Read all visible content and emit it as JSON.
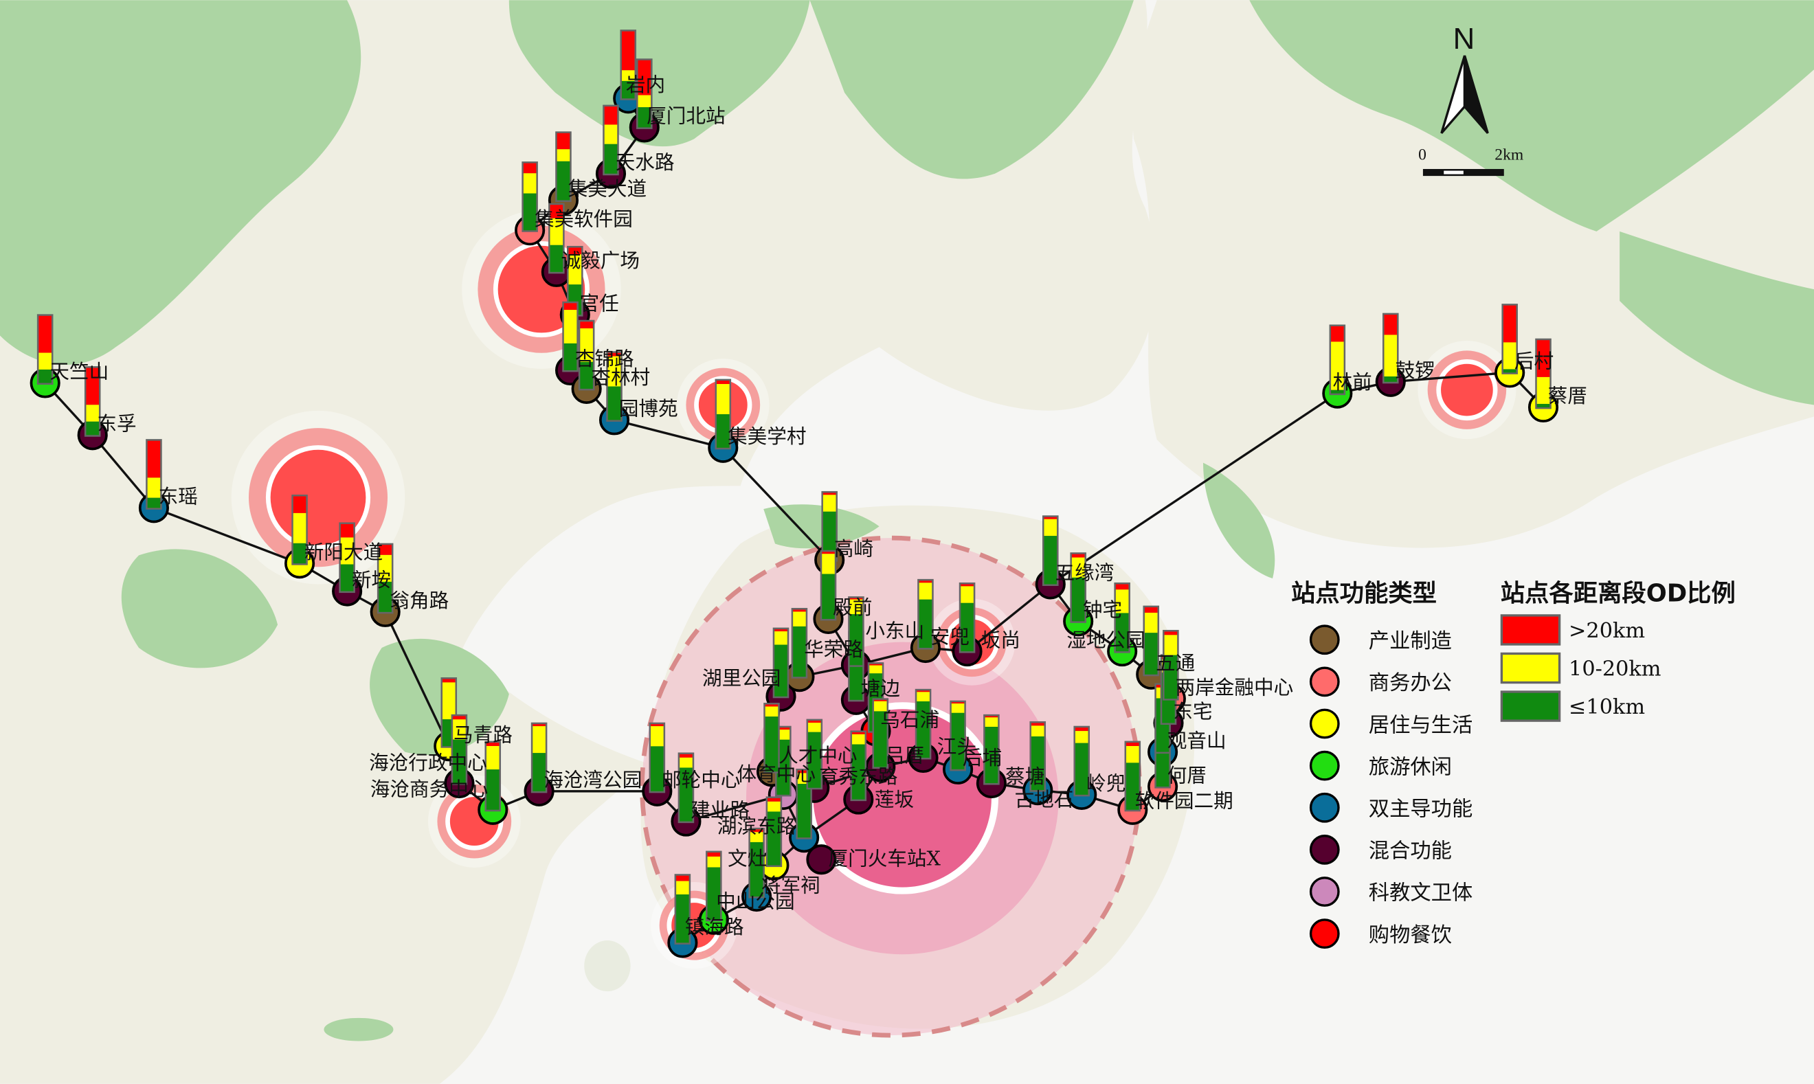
{
  "map": {
    "north_label": "N",
    "scale_labels": [
      "0",
      "2km"
    ],
    "colors": {
      "land": "#efeee2",
      "green": "#acd5a3",
      "water": "#f6f6f4",
      "line": "#111111",
      "hotspot": "#ff4d4d",
      "core": "#e85a8a"
    }
  },
  "legend": {
    "function_title": "站点功能类型",
    "function_types": [
      {
        "key": "industry",
        "label": "产业制造",
        "color": "#7a5a2e"
      },
      {
        "key": "business",
        "label": "商务办公",
        "color": "#ff6b6b"
      },
      {
        "key": "residential",
        "label": "居住与生活",
        "color": "#ffff00"
      },
      {
        "key": "leisure",
        "label": "旅游休闲",
        "color": "#22dd11"
      },
      {
        "key": "dual",
        "label": "双主导功能",
        "color": "#0a6e9a"
      },
      {
        "key": "mixed",
        "label": "混合功能",
        "color": "#55002e"
      },
      {
        "key": "education",
        "label": "科教文卫体",
        "color": "#cc88bb"
      },
      {
        "key": "shopping",
        "label": "购物餐饮",
        "color": "#ff0000"
      }
    ],
    "od_title": "站点各距离段OD比例",
    "od_bands": [
      {
        "key": "far",
        "label": ">20km",
        "color": "#ff0000"
      },
      {
        "key": "mid",
        "label": "10-20km",
        "color": "#ffff00"
      },
      {
        "key": "near",
        "label": "≤10km",
        "color": "#108a10"
      }
    ]
  },
  "stations": [
    {
      "name": "岩内",
      "type": "dual",
      "od": [
        58,
        16,
        26
      ]
    },
    {
      "name": "厦门北站",
      "type": "mixed",
      "od": [
        52,
        18,
        30
      ]
    },
    {
      "name": "天水路",
      "type": "mixed",
      "od": [
        27,
        29,
        44
      ]
    },
    {
      "name": "集美大道",
      "type": "industry",
      "od": [
        24,
        18,
        58
      ]
    },
    {
      "name": "集美软件园",
      "type": "business",
      "od": [
        15,
        30,
        55
      ]
    },
    {
      "name": "诚毅广场",
      "type": "mixed",
      "od": [
        20,
        40,
        40
      ]
    },
    {
      "name": "官任",
      "type": "mixed",
      "od": [
        10,
        45,
        45
      ]
    },
    {
      "name": "杏锦路",
      "type": "mixed",
      "od": [
        10,
        50,
        40
      ]
    },
    {
      "name": "杏林村",
      "type": "industry",
      "od": [
        10,
        50,
        40
      ]
    },
    {
      "name": "园博苑",
      "type": "dual",
      "od": [
        5,
        45,
        50
      ]
    },
    {
      "name": "集美学村",
      "type": "dual",
      "od": [
        5,
        45,
        50
      ]
    },
    {
      "name": "高崎",
      "type": "industry",
      "od": [
        3,
        25,
        72
      ]
    },
    {
      "name": "殿前",
      "type": "industry",
      "od": [
        3,
        30,
        67
      ]
    },
    {
      "name": "塘边",
      "type": "mixed",
      "od": [
        2,
        15,
        83
      ]
    },
    {
      "name": "乌石浦",
      "type": "shopping",
      "od": [
        2,
        12,
        86
      ]
    },
    {
      "name": "吕厝",
      "type": "mixed",
      "od": [
        2,
        15,
        83
      ]
    },
    {
      "name": "莲坂",
      "type": "mixed",
      "od": [
        3,
        15,
        82
      ]
    },
    {
      "name": "湖滨东路",
      "type": "dual",
      "od": [
        4,
        16,
        80
      ]
    },
    {
      "name": "文灶",
      "type": "residential",
      "od": [
        5,
        15,
        80
      ]
    },
    {
      "name": "将军祠",
      "type": "dual",
      "od": [
        4,
        15,
        81
      ]
    },
    {
      "name": "中山公园",
      "type": "leisure",
      "od": [
        6,
        16,
        78
      ]
    },
    {
      "name": "镇海路",
      "type": "dual",
      "od": [
        8,
        20,
        72
      ]
    },
    {
      "name": "天竺山",
      "type": "leisure",
      "od": [
        55,
        25,
        20
      ]
    },
    {
      "name": "东孚",
      "type": "mixed",
      "od": [
        55,
        25,
        20
      ]
    },
    {
      "name": "东瑶",
      "type": "dual",
      "od": [
        55,
        30,
        15
      ]
    },
    {
      "name": "新阳大道",
      "type": "residential",
      "od": [
        25,
        45,
        30
      ]
    },
    {
      "name": "新垵",
      "type": "mixed",
      "od": [
        20,
        40,
        40
      ]
    },
    {
      "name": "翁角路",
      "type": "industry",
      "od": [
        15,
        40,
        45
      ]
    },
    {
      "name": "马青路",
      "type": "residential",
      "od": [
        5,
        55,
        40
      ]
    },
    {
      "name": "海沧行政中心",
      "type": "mixed",
      "od": [
        5,
        30,
        65
      ]
    },
    {
      "name": "海沧商务中心",
      "type": "leisure",
      "od": [
        5,
        35,
        60
      ]
    },
    {
      "name": "海沧湾公园",
      "type": "mixed",
      "od": [
        3,
        40,
        57
      ]
    },
    {
      "name": "邮轮中心",
      "type": "mixed",
      "od": [
        3,
        30,
        67
      ]
    },
    {
      "name": "建业路",
      "type": "mixed",
      "od": [
        5,
        15,
        80
      ]
    },
    {
      "name": "体育中心",
      "type": "education",
      "od": [
        3,
        15,
        82
      ]
    },
    {
      "name": "育秀东路",
      "type": "mixed",
      "od": [
        3,
        14,
        83
      ]
    },
    {
      "name": "江头",
      "type": "mixed",
      "od": [
        2,
        14,
        84
      ]
    },
    {
      "name": "后埔",
      "type": "dual",
      "od": [
        2,
        14,
        84
      ]
    },
    {
      "name": "蔡塘",
      "type": "mixed",
      "od": [
        2,
        14,
        84
      ]
    },
    {
      "name": "古地石",
      "type": "dual",
      "od": [
        4,
        16,
        80
      ]
    },
    {
      "name": "岭兜",
      "type": "dual",
      "od": [
        5,
        18,
        77
      ]
    },
    {
      "name": "软件园二期",
      "type": "business",
      "od": [
        5,
        25,
        70
      ]
    },
    {
      "name": "何厝",
      "type": "business",
      "od": [
        5,
        20,
        75
      ]
    },
    {
      "name": "观音山",
      "type": "dual",
      "od": [
        4,
        16,
        80
      ]
    },
    {
      "name": "东宅",
      "type": "mixed",
      "od": [
        5,
        20,
        75
      ]
    },
    {
      "name": "两岸金融中心",
      "type": "business",
      "od": [
        5,
        30,
        65
      ]
    },
    {
      "name": "五通",
      "type": "industry",
      "od": [
        8,
        30,
        62
      ]
    },
    {
      "name": "人才中心",
      "type": "industry",
      "od": [
        3,
        15,
        82
      ]
    },
    {
      "name": "湖里公园",
      "type": "mixed",
      "od": [
        3,
        20,
        77
      ]
    },
    {
      "name": "华荣路",
      "type": "industry",
      "od": [
        3,
        22,
        75
      ]
    },
    {
      "name": "小东山",
      "type": "mixed",
      "od": [
        2,
        22,
        76
      ]
    },
    {
      "name": "安兜",
      "type": "industry",
      "od": [
        3,
        25,
        72
      ]
    },
    {
      "name": "坂尚",
      "type": "mixed",
      "od": [
        3,
        25,
        72
      ]
    },
    {
      "name": "五缘湾",
      "type": "mixed",
      "od": [
        3,
        25,
        72
      ]
    },
    {
      "name": "钟宅",
      "type": "leisure",
      "od": [
        5,
        30,
        65
      ]
    },
    {
      "name": "湿地公园",
      "type": "leisure",
      "od": [
        8,
        35,
        57
      ]
    },
    {
      "name": "林前",
      "type": "leisure",
      "od": [
        23,
        72,
        5
      ]
    },
    {
      "name": "鼓锣",
      "type": "mixed",
      "od": [
        30,
        62,
        8
      ]
    },
    {
      "name": "后村",
      "type": "residential",
      "od": [
        55,
        40,
        5
      ]
    },
    {
      "name": "蔡厝",
      "type": "residential",
      "od": [
        55,
        40,
        5
      ]
    }
  ],
  "lines": [
    [
      "岩内",
      "厦门北站",
      "天水路",
      "集美大道",
      "集美软件园",
      "诚毅广场",
      "官任",
      "杏锦路",
      "杏林村",
      "园博苑",
      "集美学村",
      "高崎",
      "殿前",
      "小东山",
      "塘边",
      "乌石浦",
      "吕厝",
      "莲坂",
      "湖滨东路",
      "文灶",
      "将军祠",
      "中山公园",
      "镇海路"
    ],
    [
      "天竺山",
      "东孚",
      "东瑶",
      "新阳大道",
      "新垵",
      "翁角路",
      "马青路",
      "海沧行政中心",
      "海沧商务中心",
      "海沧湾公园",
      "邮轮中心",
      "建业路",
      "体育中心",
      "育秀东路",
      "吕厝",
      "江头",
      "后埔",
      "蔡塘",
      "古地石",
      "岭兜",
      "软件园二期",
      "何厝",
      "观音山",
      "东宅",
      "两岸金融中心",
      "五通"
    ],
    [
      "厦门火车站X",
      "湖滨东路",
      "人才中心",
      "湖里公园",
      "华荣路",
      "小东山",
      "安兜",
      "坂尚",
      "五缘湾",
      "钟宅",
      "湿地公园",
      "五通"
    ],
    [
      "五缘湾",
      "林前",
      "鼓锣",
      "后村",
      "蔡厝"
    ]
  ]
}
